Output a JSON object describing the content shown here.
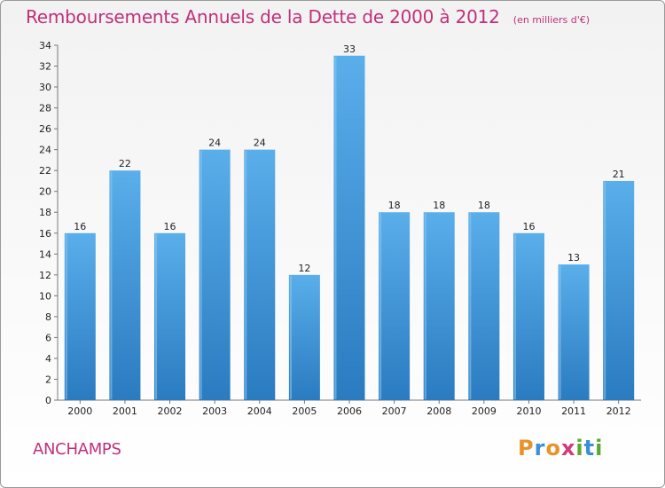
{
  "header": {
    "title": "Remboursements Annuels de la Dette de 2000 à 2012",
    "unit": "(en milliers d'€)"
  },
  "footer": {
    "commune": "ANCHAMPS",
    "logo_letters": [
      "P",
      "r",
      "o",
      "x",
      "i",
      "t",
      "i"
    ],
    "logo_colors": [
      "#e8932a",
      "#3a8fd6",
      "#e8932a",
      "#d23a7c",
      "#5aa832",
      "#3a8fd6",
      "#5aa832"
    ]
  },
  "chart_data": {
    "type": "bar",
    "title": "Remboursements Annuels de la Dette de 2000 à 2012",
    "xlabel": "",
    "ylabel": "",
    "categories": [
      "2000",
      "2001",
      "2002",
      "2003",
      "2004",
      "2005",
      "2006",
      "2007",
      "2008",
      "2009",
      "2010",
      "2011",
      "2012"
    ],
    "values": [
      16,
      22,
      16,
      24,
      24,
      12,
      33,
      18,
      18,
      18,
      16,
      13,
      21
    ],
    "ylim": [
      0,
      34
    ],
    "yticks": [
      0,
      2,
      4,
      6,
      8,
      10,
      12,
      14,
      16,
      18,
      20,
      22,
      24,
      26,
      28,
      30,
      32,
      34
    ],
    "grid": false,
    "bar_color_top": "#5aaeea",
    "bar_color_bottom": "#2a7bc0"
  }
}
